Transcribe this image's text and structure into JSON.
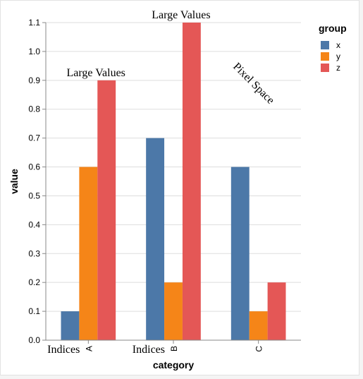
{
  "chart_data": {
    "type": "bar",
    "xlabel": "category",
    "ylabel": "value",
    "ylim": [
      0,
      1.1
    ],
    "yticks": [
      "0.0",
      "0.1",
      "0.2",
      "0.3",
      "0.4",
      "0.5",
      "0.6",
      "0.7",
      "0.8",
      "0.9",
      "1.0",
      "1.1"
    ],
    "categories": [
      "A",
      "B",
      "C"
    ],
    "series": [
      {
        "name": "x",
        "color": "#4c78a8",
        "values": [
          0.1,
          0.7,
          0.6
        ]
      },
      {
        "name": "y",
        "color": "#f58518",
        "values": [
          0.6,
          0.2,
          0.1
        ]
      },
      {
        "name": "z",
        "color": "#e45756",
        "values": [
          0.9,
          1.1,
          0.2
        ]
      }
    ],
    "grid": true,
    "legend": {
      "title": "group",
      "placement": "top-right"
    },
    "annotations": [
      {
        "text": "Large Values",
        "kind": "above-bar",
        "category": "A",
        "series": "z"
      },
      {
        "text": "Large Values",
        "kind": "above-bar",
        "category": "B",
        "series": "z"
      },
      {
        "text": "Indices",
        "kind": "before-category",
        "category": "A"
      },
      {
        "text": "Indices",
        "kind": "before-category",
        "category": "B"
      },
      {
        "text": "Pixel Space",
        "kind": "rotated-free-text"
      }
    ]
  }
}
